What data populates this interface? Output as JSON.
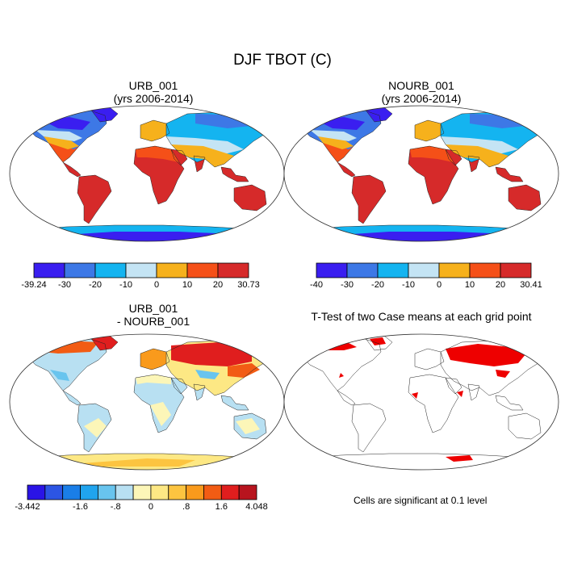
{
  "figure": {
    "title": "DJF TBOT (C)"
  },
  "panels": [
    {
      "id": "urb",
      "title_line1": "URB_001",
      "title_line2": "(yrs 2006-2014)",
      "colorbar": {
        "colors": [
          "#3a1ef0",
          "#3d78e6",
          "#14b4f0",
          "#c4e4f4",
          "#f6b11c",
          "#f55018",
          "#d62a2a"
        ],
        "labels": [
          "-39.24",
          "-30",
          "-20",
          "-10",
          "0",
          "10",
          "20",
          "30.73"
        ]
      }
    },
    {
      "id": "nourb",
      "title_line1": "NOURB_001",
      "title_line2": "(yrs 2006-2014)",
      "colorbar": {
        "colors": [
          "#3a1ef0",
          "#3d78e6",
          "#14b4f0",
          "#c4e4f4",
          "#f6b11c",
          "#f55018",
          "#d62a2a"
        ],
        "labels": [
          "-40",
          "-30",
          "-20",
          "-10",
          "0",
          "10",
          "20",
          "30.41"
        ]
      }
    },
    {
      "id": "diff",
      "title_line1": "URB_001",
      "title_line2": "- NOURB_001",
      "colorbar": {
        "colors": [
          "#2a14e6",
          "#2c55e4",
          "#1a7ee8",
          "#20a4ee",
          "#68c4ee",
          "#b8e0f2",
          "#fcf6b8",
          "#fde884",
          "#fcc440",
          "#f99a1c",
          "#f25c14",
          "#e01e1e",
          "#b8141e"
        ],
        "labels": [
          "-3.442",
          "-1.6",
          "-.8",
          "0",
          ".8",
          "1.6",
          "4.048"
        ]
      }
    },
    {
      "id": "ttest",
      "title_line1": "T-Test of two Case means at each grid point",
      "note": "Cells are significant at 0.1 level"
    }
  ],
  "colors": {
    "ocean": "#ffffff",
    "significant": "#ee0000",
    "warm_hot": "#d62a2a",
    "warm_mid": "#f55018",
    "warm_low": "#f6b11c",
    "cold_pale": "#c4e4f4",
    "cold_mid": "#14b4f0",
    "cold_blue": "#3d78e6",
    "cold_deep": "#3a1ef0",
    "diff_pale": "#fcf6b8",
    "diff_lightblue": "#b8e0f2",
    "diff_warm": "#f25c14",
    "diff_hot": "#e01e1e"
  }
}
